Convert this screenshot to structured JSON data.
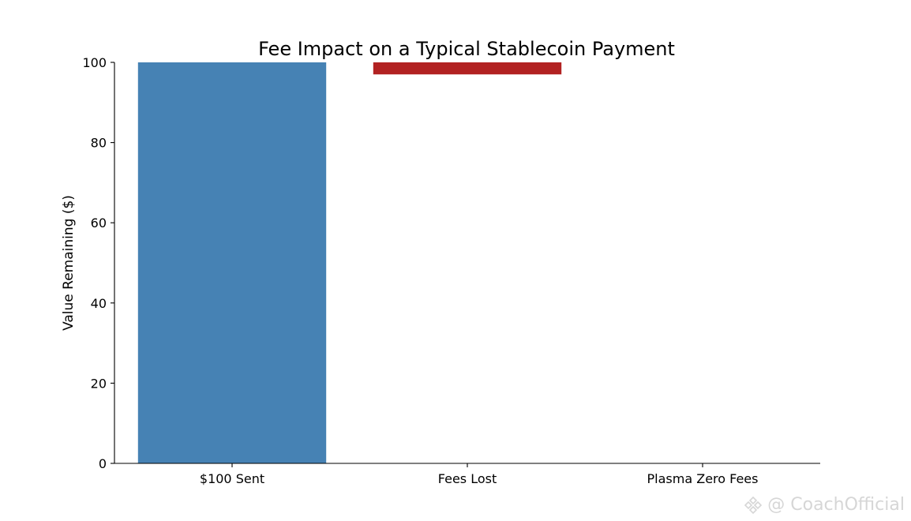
{
  "chart_data": {
    "type": "bar",
    "title": "Fee Impact on a Typical Stablecoin Payment",
    "xlabel": "",
    "ylabel": "Value Remaining ($)",
    "categories": [
      "$100 Sent",
      "Fees Lost",
      "Plasma Zero Fees"
    ],
    "bars": [
      {
        "category": "$100 Sent",
        "bottom": 0,
        "top": 100,
        "color": "#4682b4"
      },
      {
        "category": "Fees Lost",
        "bottom": 97,
        "top": 100,
        "color": "#b22222"
      },
      {
        "category": "Plasma Zero Fees",
        "bottom": 0,
        "top": 0,
        "color": "#4682b4"
      }
    ],
    "ylim": [
      0,
      100
    ],
    "yticks": [
      0,
      20,
      40,
      60,
      80,
      100
    ],
    "grid": false
  },
  "watermark": {
    "text": "@ CoachOfficial",
    "icon": "binance-square-icon"
  }
}
